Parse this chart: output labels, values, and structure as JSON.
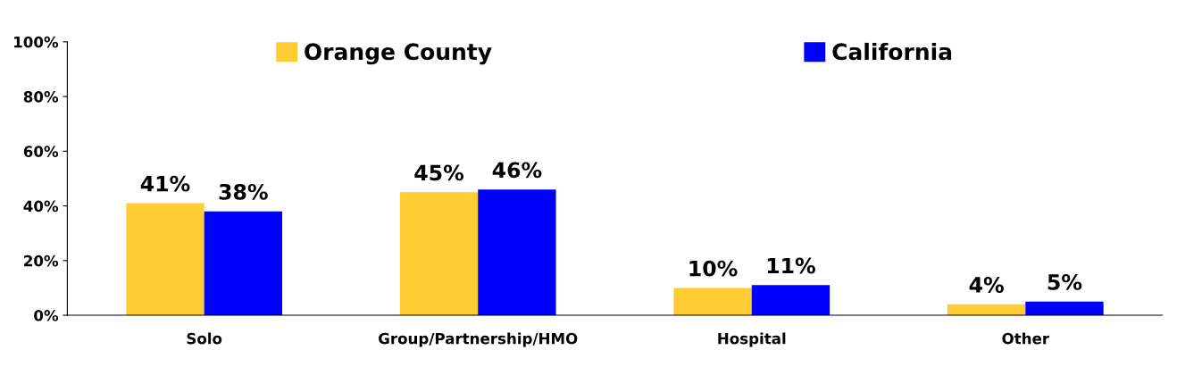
{
  "chart_data": {
    "type": "bar",
    "categories": [
      "Solo",
      "Group/Partnership/HMO",
      "Hospital",
      "Other"
    ],
    "series": [
      {
        "name": "Orange County",
        "color": "#ffcc33",
        "values": [
          41,
          45,
          10,
          4
        ],
        "value_labels": [
          "41%",
          "45%",
          "10%",
          "4%"
        ]
      },
      {
        "name": "California",
        "color": "#0000ff",
        "values": [
          38,
          46,
          11,
          5
        ],
        "value_labels": [
          "38%",
          "46%",
          "11%",
          "5%"
        ]
      }
    ],
    "ylim": [
      0,
      100
    ],
    "yticks": [
      {
        "value": 0,
        "label": "0%"
      },
      {
        "value": 20,
        "label": "20%"
      },
      {
        "value": 40,
        "label": "40%"
      },
      {
        "value": 60,
        "label": "60%"
      },
      {
        "value": 80,
        "label": "80%"
      },
      {
        "value": 100,
        "label": "100%"
      }
    ],
    "grid": false,
    "legend": "top"
  }
}
